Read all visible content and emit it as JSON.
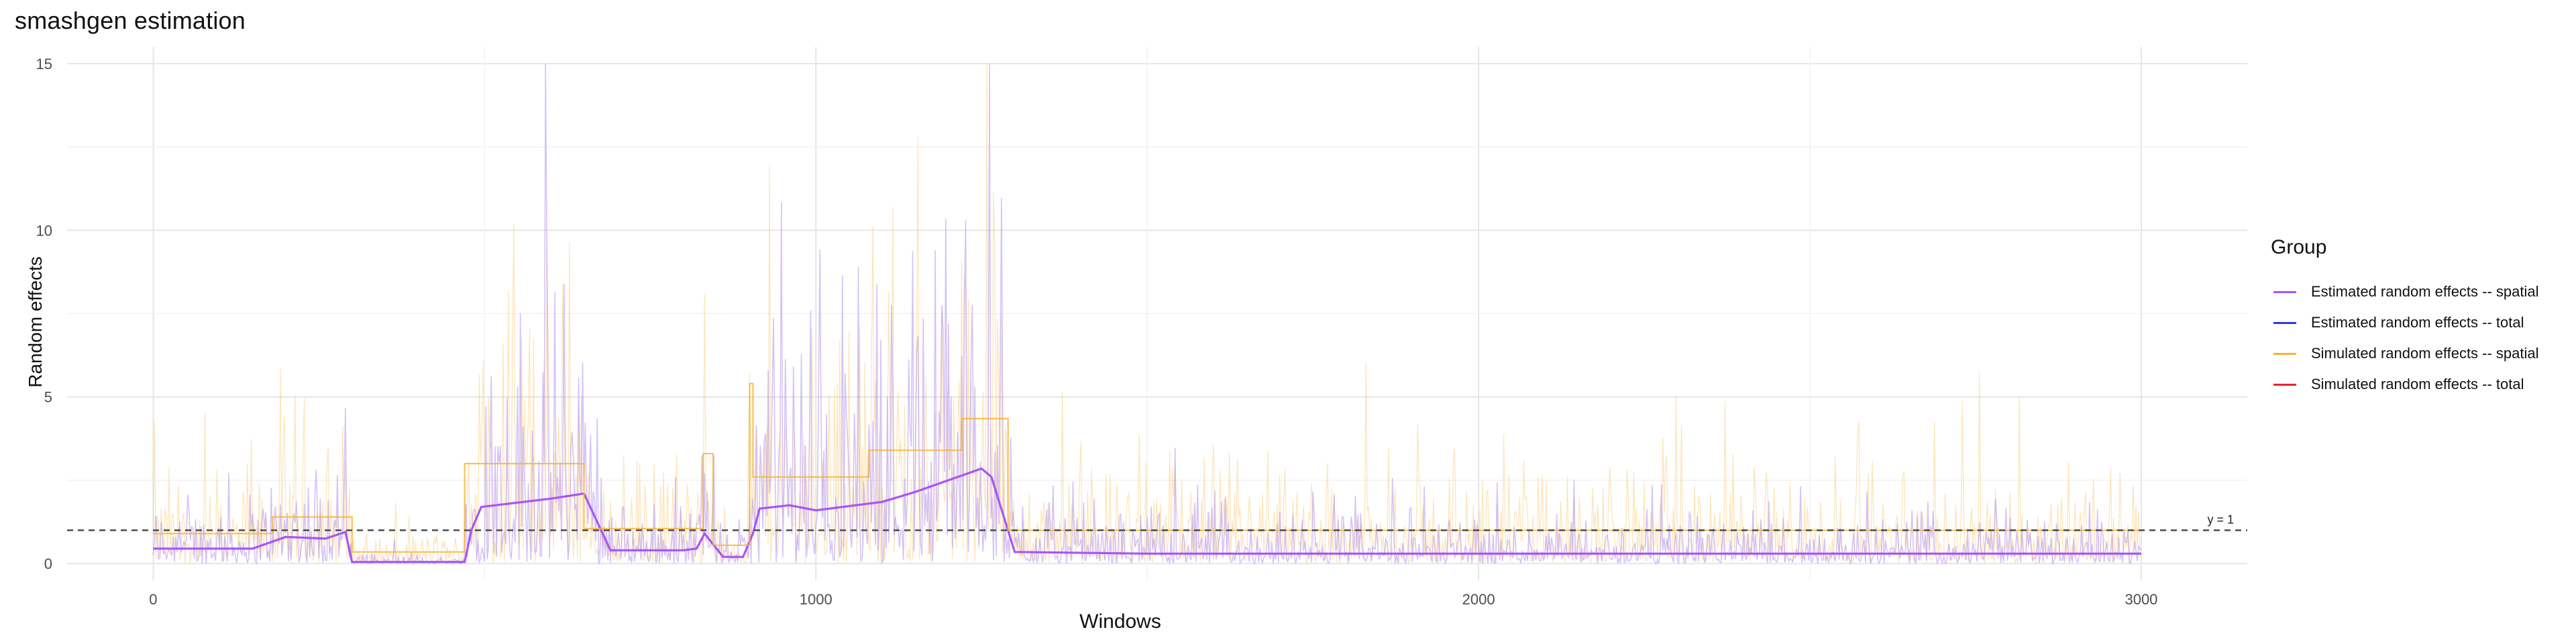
{
  "chart_data": {
    "type": "line",
    "title": "smashgen estimation",
    "xlabel": "Windows",
    "ylabel": "Random effects",
    "xlim": [
      -130,
      3160
    ],
    "ylim": [
      -0.5,
      15.5
    ],
    "x_ticks": [
      0,
      1000,
      2000,
      3000
    ],
    "y_ticks": [
      0,
      5,
      10,
      15
    ],
    "grid": true,
    "legend_title": "Group",
    "legend_position": "right",
    "hline": {
      "y": 1,
      "label": "y = 1",
      "style": "dashed"
    },
    "series": [
      {
        "name": "Estimated random effects -- spatial",
        "color": "#A855F7",
        "x": [
          0,
          150,
          200,
          260,
          290,
          300,
          470,
          480,
          495,
          600,
          650,
          690,
          800,
          820,
          832,
          860,
          890,
          905,
          915,
          960,
          1000,
          1100,
          1150,
          1200,
          1250,
          1265,
          1300,
          1500,
          2000,
          2500,
          3000
        ],
        "values": [
          0.45,
          0.45,
          0.8,
          0.75,
          0.95,
          0.05,
          0.05,
          1.0,
          1.7,
          1.95,
          2.1,
          0.4,
          0.4,
          0.45,
          0.9,
          0.2,
          0.2,
          0.9,
          1.65,
          1.75,
          1.6,
          1.85,
          2.15,
          2.5,
          2.85,
          2.6,
          0.35,
          0.3,
          0.3,
          0.3,
          0.3
        ]
      },
      {
        "name": "Estimated random effects -- total",
        "color": "#2B3AE8",
        "x": [],
        "values": []
      },
      {
        "name": "Simulated random effects -- spatial",
        "color": "#F5B335",
        "x": [
          0,
          180,
          180,
          300,
          300,
          470,
          470,
          650,
          650,
          830,
          830,
          845,
          845,
          900,
          900,
          905,
          905,
          1000,
          1000,
          1080,
          1080,
          1220,
          1220,
          1290,
          1290,
          3000
        ],
        "values": [
          0.9,
          0.9,
          1.4,
          1.4,
          0.35,
          0.35,
          3.0,
          3.0,
          1.05,
          1.05,
          3.3,
          3.3,
          0.55,
          0.55,
          5.4,
          5.4,
          2.6,
          2.6,
          2.6,
          2.6,
          3.4,
          3.4,
          4.35,
          4.35,
          1.0,
          1.0
        ]
      },
      {
        "name": "Simulated random effects -- total",
        "color": "#E8252B",
        "x": [],
        "values": []
      }
    ]
  }
}
